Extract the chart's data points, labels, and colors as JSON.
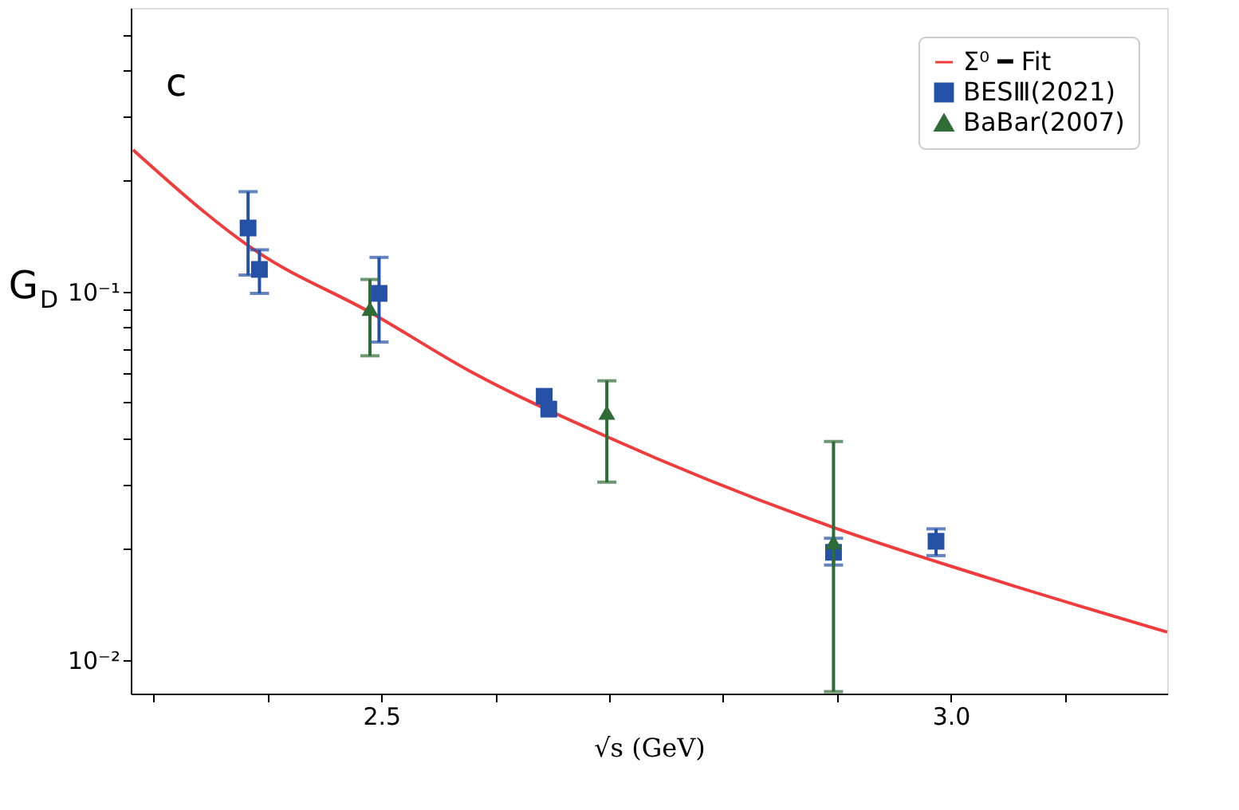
{
  "chart_data": {
    "type": "scatter",
    "xlabel": "√s (GeV)",
    "ylabel": "G$_{D}$",
    "annotations": [
      "c"
    ],
    "xlim": [
      2.28,
      3.19
    ],
    "xticks": [
      {
        "value": 2.3,
        "label": null
      },
      {
        "value": 2.4,
        "label": null
      },
      {
        "value": 2.5,
        "label": "2.5"
      },
      {
        "value": 2.6,
        "label": null
      },
      {
        "value": 2.7,
        "label": null
      },
      {
        "value": 2.8,
        "label": null
      },
      {
        "value": 2.9,
        "label": null
      },
      {
        "value": 3.0,
        "label": "3.0"
      },
      {
        "value": 3.1,
        "label": null
      }
    ],
    "ylim": [
      0.0081,
      0.59
    ],
    "log": "y",
    "yticks": [
      {
        "value": 0.01,
        "label": "10⁻²"
      },
      {
        "value": 0.02,
        "label": null
      },
      {
        "value": 0.03,
        "label": null
      },
      {
        "value": 0.04,
        "label": null
      },
      {
        "value": 0.05,
        "label": null
      },
      {
        "value": 0.06,
        "label": null
      },
      {
        "value": 0.07,
        "label": null
      },
      {
        "value": 0.08,
        "label": null
      },
      {
        "value": 0.09,
        "label": null
      },
      {
        "value": 0.1,
        "label": "10⁻¹"
      },
      {
        "value": 0.2,
        "label": null
      },
      {
        "value": 0.3,
        "label": null
      },
      {
        "value": 0.4,
        "label": null
      },
      {
        "value": 0.5,
        "label": null
      }
    ],
    "grid": false,
    "legend": "top right",
    "series": [
      {
        "name": "Σ⁰ ━ Fit",
        "type": "line",
        "color": "#f03c3c",
        "line_style": "solid",
        "x": [
          2.282,
          2.39,
          2.492,
          2.578,
          2.698,
          2.897,
          3.03,
          3.19
        ],
        "values": [
          0.243,
          0.129,
          0.0873,
          0.0608,
          0.0404,
          0.0229,
          0.0168,
          0.0119
        ]
      },
      {
        "name": "BESⅢ(2021)",
        "color": "#2451a6",
        "marker": "square",
        "x": [
          2.383,
          2.393,
          2.498,
          2.643,
          2.647,
          2.897,
          2.987
        ],
        "values": [
          0.149,
          0.115,
          0.099,
          0.052,
          0.048,
          0.0196,
          0.021
        ],
        "errors": [
          [
            0.111,
            0.187
          ],
          [
            0.099,
            0.13
          ],
          [
            0.073,
            0.124
          ],
          null,
          null,
          [
            0.0181,
            0.0214
          ],
          [
            0.0192,
            0.0227
          ]
        ]
      },
      {
        "name": "BaBar(2007)",
        "color": "#2e6b36",
        "marker": "triangle",
        "x": [
          2.49,
          2.698,
          2.897
        ],
        "values": [
          0.09,
          0.047,
          0.0209
        ],
        "errors": [
          [
            0.067,
            0.108
          ],
          [
            0.0304,
            0.0573
          ],
          [
            0.0082,
            0.0392
          ]
        ]
      }
    ]
  }
}
